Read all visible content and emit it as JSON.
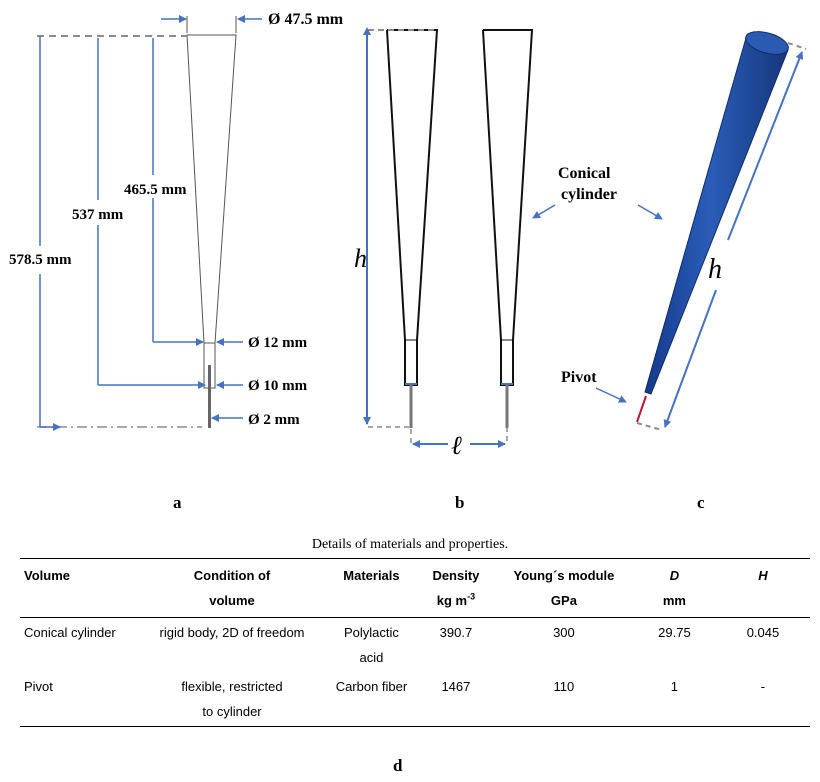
{
  "panel_a": {
    "diam_top": "Ø 47.5 mm",
    "height_465": "465.5 mm",
    "height_537": "537 mm",
    "height_578": "578.5 mm",
    "diam_12": "Ø 12 mm",
    "diam_10": "Ø 10 mm",
    "diam_2": "Ø 2 mm"
  },
  "panel_b": {
    "h": "h",
    "l": "ℓ"
  },
  "panel_c": {
    "conical": "Conical",
    "cylinder": "cylinder",
    "h": "h",
    "pivot": "Pivot"
  },
  "letters": {
    "a": "a",
    "b": "b",
    "c": "c",
    "d": "d"
  },
  "table": {
    "caption": "Details of materials and properties.",
    "header": {
      "volume": "Volume",
      "condition_1": "Condition of",
      "condition_2": "volume",
      "materials": "Materials",
      "density_1": "Density",
      "density_2": "kg m",
      "density_exp": "-3",
      "young_1": "Young´s module",
      "young_2": "GPa",
      "D": "D",
      "D_unit": "mm",
      "H": "H"
    },
    "rows": [
      {
        "volume": "Conical cylinder",
        "condition": "rigid body, 2D of freedom",
        "materials": "Polylactic acid",
        "density": "390.7",
        "young": "300",
        "D": "29.75",
        "H": "0.045"
      },
      {
        "volume": "Pivot",
        "condition": "flexible, restricted to cylinder",
        "materials": "Carbon fiber",
        "density": "1467",
        "young": "110",
        "D": "1",
        "H": "-"
      }
    ]
  },
  "colors": {
    "dim_line": "#4472c4",
    "cone_blue": "#1f4e9c",
    "pivot_red": "#c0143c",
    "dash_gray": "#8c8c8c"
  }
}
